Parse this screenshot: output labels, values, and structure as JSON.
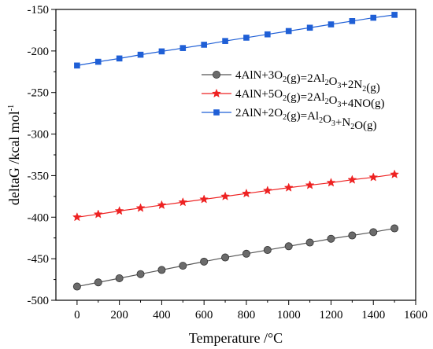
{
  "chart_data": {
    "type": "line",
    "xlabel": "Temperature /°C",
    "ylabel_main": "deltaG  /kcal mol",
    "ylabel_sup": "-1",
    "xlim": [
      -100,
      1600
    ],
    "ylim": [
      -500,
      -150
    ],
    "xticks": [
      0,
      200,
      400,
      600,
      800,
      1000,
      1200,
      1400,
      1600
    ],
    "yticks": [
      -500,
      -450,
      -400,
      -350,
      -300,
      -250,
      -200,
      -150
    ],
    "grid": false,
    "legend_position": "right-middle",
    "x": [
      0,
      100,
      200,
      300,
      400,
      500,
      600,
      700,
      800,
      900,
      1000,
      1100,
      1200,
      1300,
      1400,
      1500
    ],
    "series": [
      {
        "name": "4AlN+3O2(g)=2Al2O3+2N2(g)",
        "color": "#555555",
        "marker": "circle",
        "legend_parts": [
          [
            "4AlN+3O",
            ""
          ],
          [
            "2",
            "sub"
          ],
          [
            "(g)=2Al",
            ""
          ],
          [
            "2",
            "sub"
          ],
          [
            "O",
            ""
          ],
          [
            "3",
            "sub"
          ],
          [
            "+2N",
            ""
          ],
          [
            "2",
            "sub"
          ],
          [
            "(g)",
            ""
          ]
        ],
        "values": [
          -483.5,
          -478.5,
          -473.5,
          -468.5,
          -463.5,
          -458.5,
          -453.5,
          -448.5,
          -444,
          -439.5,
          -435,
          -430.5,
          -426,
          -422,
          -418,
          -413.5
        ]
      },
      {
        "name": "4AlN+5O2(g)=2Al2O3+4NO(g)",
        "color": "#ee2222",
        "marker": "star",
        "legend_parts": [
          [
            "4AlN+5O",
            ""
          ],
          [
            "2",
            "sub"
          ],
          [
            "(g)=2Al",
            ""
          ],
          [
            "2",
            "sub"
          ],
          [
            "O",
            ""
          ],
          [
            "3",
            "sub"
          ],
          [
            "+4NO(g)",
            ""
          ]
        ],
        "values": [
          -400,
          -396.5,
          -392.5,
          -389,
          -385.5,
          -382,
          -378.5,
          -375,
          -371.5,
          -368,
          -364.5,
          -361.5,
          -358.5,
          -355,
          -352,
          -348.5
        ]
      },
      {
        "name": "2AlN+2O2(g)=Al2O3+N2O(g)",
        "color": "#1f5fd6",
        "marker": "square",
        "legend_parts": [
          [
            "2AlN+2O",
            ""
          ],
          [
            "2",
            "sub"
          ],
          [
            "(g)=Al",
            ""
          ],
          [
            "2",
            "sub"
          ],
          [
            "O",
            ""
          ],
          [
            "3",
            "sub"
          ],
          [
            "+N",
            ""
          ],
          [
            "2",
            "sub"
          ],
          [
            "O(g)",
            ""
          ]
        ],
        "values": [
          -217.5,
          -213,
          -209,
          -204.5,
          -200.5,
          -196.5,
          -192.5,
          -188,
          -184,
          -180,
          -176,
          -172,
          -168,
          -164,
          -160,
          -156.5
        ]
      }
    ]
  }
}
